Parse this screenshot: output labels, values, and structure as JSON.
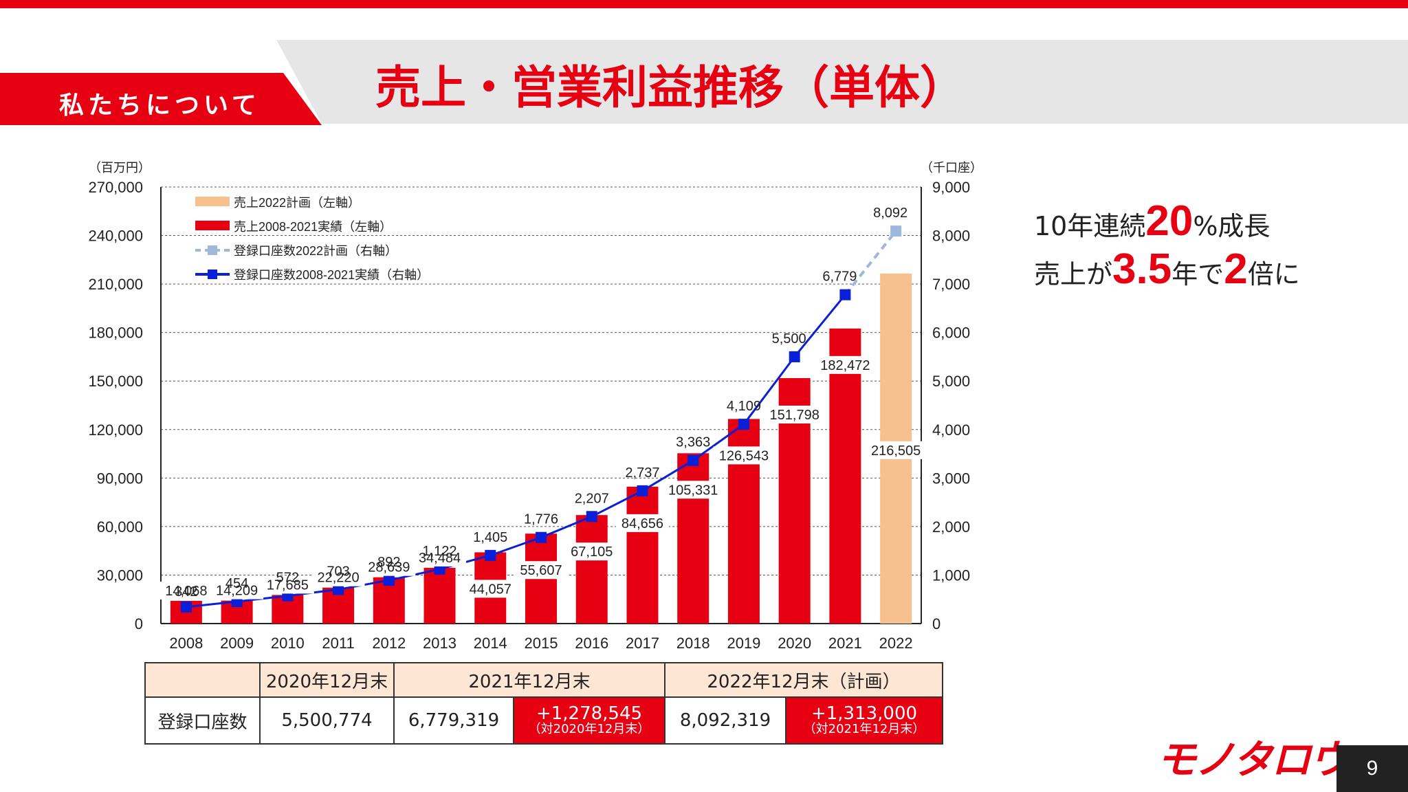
{
  "header": {
    "section_label": "私たちについて",
    "title": "売上・営業利益推移（単体）"
  },
  "side_note": {
    "line1_a": "10年連続",
    "line1_big": "20",
    "line1_b": "%成長",
    "line2_a": "売上が",
    "line2_big": "3.5",
    "line2_b": "年で",
    "line2_big2": "2",
    "line2_c": "倍に"
  },
  "colors": {
    "brand_red": "#e60012",
    "plan_bar": "#f7c08f",
    "line_actual": "#0a1fd8",
    "line_plan": "#9fb6dd"
  },
  "chart_data": {
    "type": "bar",
    "left_unit": "（百万円）",
    "right_unit": "（千口座）",
    "years": [
      "2008",
      "2009",
      "2010",
      "2011",
      "2012",
      "2013",
      "2014",
      "2015",
      "2016",
      "2017",
      "2018",
      "2019",
      "2020",
      "2021",
      "2022"
    ],
    "left_ticks": [
      "270,000",
      "240,000",
      "210,000",
      "180,000",
      "150,000",
      "120,000",
      "90,000",
      "60,000",
      "30,000",
      "0"
    ],
    "right_ticks": [
      "9,000",
      "8,000",
      "7,000",
      "6,000",
      "5,000",
      "4,000",
      "3,000",
      "2,000",
      "1,000",
      "0"
    ],
    "ylim_left": [
      0,
      270000
    ],
    "ylim_right": [
      0,
      9000
    ],
    "legend": [
      "売上2022計画（左軸）",
      "売上2008-2021実績（左軸）",
      "登録口座数2022計画（右軸）",
      "登録口座数2008-2021実績（右軸）"
    ],
    "sales": [
      {
        "value": 14068,
        "label": "14,068",
        "plan": false
      },
      {
        "value": 14209,
        "label": "14,209",
        "plan": false
      },
      {
        "value": 17685,
        "label": "17,685",
        "plan": false
      },
      {
        "value": 22220,
        "label": "22,220",
        "plan": false
      },
      {
        "value": 28639,
        "label": "28,639",
        "plan": false
      },
      {
        "value": 34484,
        "label": "34,484",
        "plan": false
      },
      {
        "value": 44057,
        "label": "44,057",
        "plan": false
      },
      {
        "value": 55607,
        "label": "55,607",
        "plan": false
      },
      {
        "value": 67105,
        "label": "67,105",
        "plan": false
      },
      {
        "value": 84656,
        "label": "84,656",
        "plan": false
      },
      {
        "value": 105331,
        "label": "105,331",
        "plan": false
      },
      {
        "value": 126543,
        "label": "126,543",
        "plan": false
      },
      {
        "value": 151798,
        "label": "151,798",
        "plan": false
      },
      {
        "value": 182472,
        "label": "182,472",
        "plan": false
      },
      {
        "value": 216505,
        "label": "216,505",
        "plan": true
      }
    ],
    "accounts": [
      {
        "value": 342,
        "label": "342"
      },
      {
        "value": 454,
        "label": "454"
      },
      {
        "value": 572,
        "label": "572"
      },
      {
        "value": 703,
        "label": "703"
      },
      {
        "value": 892,
        "label": "892"
      },
      {
        "value": 1122,
        "label": "1,122"
      },
      {
        "value": 1405,
        "label": "1,405"
      },
      {
        "value": 1776,
        "label": "1,776"
      },
      {
        "value": 2207,
        "label": "2,207"
      },
      {
        "value": 2737,
        "label": "2,737"
      },
      {
        "value": 3363,
        "label": "3,363"
      },
      {
        "value": 4109,
        "label": "4,109"
      },
      {
        "value": 5500,
        "label": "5,500"
      },
      {
        "value": 6779,
        "label": "6,779"
      },
      {
        "value": 8092,
        "label": "8,092"
      }
    ]
  },
  "accounts_table": {
    "headers": [
      "",
      "2020年12月末",
      "2021年12月末",
      "2022年12月末（計画）"
    ],
    "row_label": "登録口座数",
    "v2020": "5,500,774",
    "v2021": "6,779,319",
    "d2021": "+1,278,545",
    "d2021_note": "（対2020年12月末）",
    "v2022": "8,092,319",
    "d2022": "+1,313,000",
    "d2022_note": "（対2021年12月末）"
  },
  "footer": {
    "logo_text": "モノタロウ",
    "page_number": "9"
  }
}
